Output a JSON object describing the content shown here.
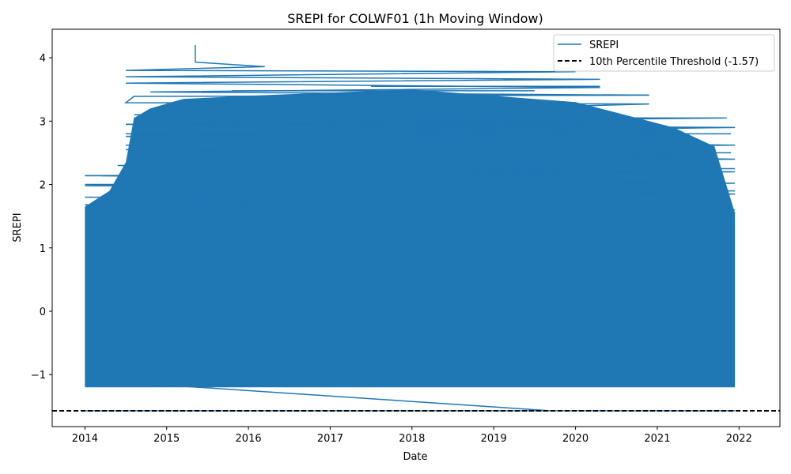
{
  "chart_data": {
    "type": "line",
    "title": "SREPI for COLWF01 (1h Moving Window)",
    "xlabel": "Date",
    "ylabel": "SREPI",
    "xlim": [
      2013.6,
      2022.5
    ],
    "ylim": [
      -1.82,
      4.45
    ],
    "x_ticks": [
      "2014",
      "2015",
      "2016",
      "2017",
      "2018",
      "2019",
      "2020",
      "2021",
      "2022"
    ],
    "y_ticks": [
      "−1",
      "0",
      "1",
      "2",
      "3",
      "4"
    ],
    "grid": false,
    "legend_position": "top-right",
    "series": [
      {
        "name": "SREPI",
        "color": "#1f77b4",
        "style": "solid",
        "summary": {
          "dense_band_x": [
            2014.0,
            2021.95
          ],
          "dense_band_y": [
            -1.2,
            3.5
          ],
          "max": {
            "x": 2015.35,
            "y": 4.2
          },
          "min": -1.57
        },
        "points": [
          {
            "x": 2015.35,
            "y": 4.2
          },
          {
            "x": 2015.35,
            "y": 3.93
          },
          {
            "x": 2016.2,
            "y": 3.86
          },
          {
            "x": 2014.5,
            "y": 3.8
          },
          {
            "x": 2020.0,
            "y": 3.78
          },
          {
            "x": 2014.5,
            "y": 3.7
          },
          {
            "x": 2020.3,
            "y": 3.66
          },
          {
            "x": 2014.5,
            "y": 3.6
          },
          {
            "x": 2020.3,
            "y": 3.53
          },
          {
            "x": 2014.8,
            "y": 3.46
          },
          {
            "x": 2020.9,
            "y": 3.41
          },
          {
            "x": 2014.6,
            "y": 3.39
          },
          {
            "x": 2014.5,
            "y": 3.29
          },
          {
            "x": 2020.9,
            "y": 3.27
          },
          {
            "x": 2014.6,
            "y": 3.05
          },
          {
            "x": 2021.85,
            "y": 3.05
          },
          {
            "x": 2014.5,
            "y": 2.95
          },
          {
            "x": 2021.95,
            "y": 2.9
          },
          {
            "x": 2014.5,
            "y": 2.76
          },
          {
            "x": 2021.95,
            "y": 2.62
          },
          {
            "x": 2014.5,
            "y": 2.55
          },
          {
            "x": 2021.95,
            "y": 2.4
          },
          {
            "x": 2014.4,
            "y": 2.3
          },
          {
            "x": 2021.95,
            "y": 2.2
          },
          {
            "x": 2014.0,
            "y": 2.14
          },
          {
            "x": 2021.95,
            "y": 2.02
          },
          {
            "x": 2014.0,
            "y": 2.0
          },
          {
            "x": 2021.95,
            "y": 1.85
          },
          {
            "x": 2014.0,
            "y": 1.68
          },
          {
            "x": 2021.95,
            "y": 1.55
          },
          {
            "x": 2014.0,
            "y": -1.15
          },
          {
            "x": 2014.7,
            "y": -1.14
          },
          {
            "x": 2019.7,
            "y": -1.57
          },
          {
            "x": 2014.0,
            "y": -1.57
          },
          {
            "x": 2021.95,
            "y": -1.57
          }
        ]
      },
      {
        "name": "10th Percentile Threshold (-1.57)",
        "color": "#000000",
        "style": "dashed",
        "y": -1.57
      }
    ]
  }
}
